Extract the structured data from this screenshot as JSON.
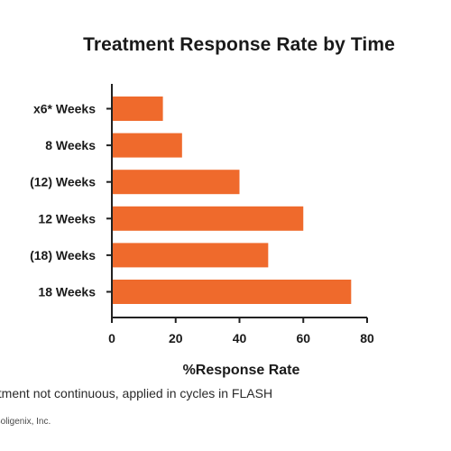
{
  "chart_data": {
    "type": "bar",
    "orientation": "horizontal",
    "title": "Treatment Response Rate by Time",
    "categories": [
      "x6* Weeks",
      "8 Weeks",
      "(12) Weeks",
      "12 Weeks",
      "(18) Weeks",
      "18 Weeks"
    ],
    "values": [
      16,
      22,
      40,
      60,
      49,
      75
    ],
    "xlabel": "%Response Rate",
    "ylabel": "",
    "xlim": [
      0,
      80
    ],
    "xticks": [
      0,
      20,
      40,
      60,
      80
    ],
    "bar_color": "#ef6a2c",
    "grid": false,
    "legend": "none"
  },
  "footnote": "atment not continuous, applied in cycles in FLASH",
  "credit": "Soligenix, Inc."
}
